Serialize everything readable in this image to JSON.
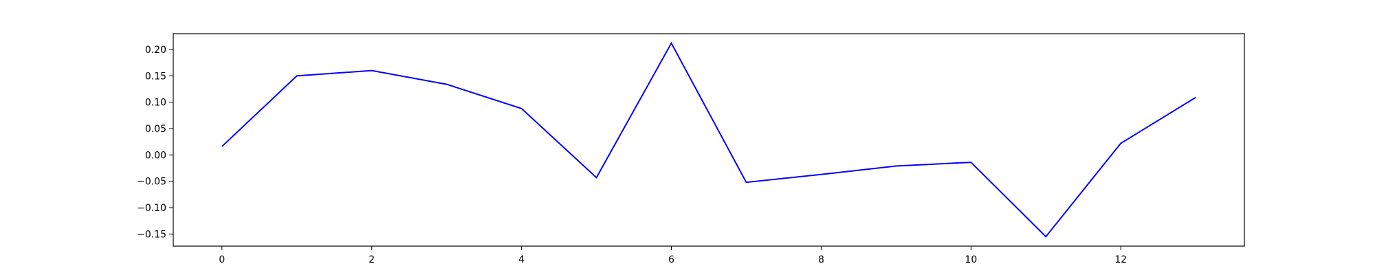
{
  "chart_data": {
    "type": "line",
    "title": "",
    "xlabel": "",
    "ylabel": "",
    "x": [
      0,
      1,
      2,
      3,
      4,
      5,
      6,
      7,
      8,
      9,
      10,
      11,
      12,
      13
    ],
    "series": [
      {
        "values": [
          0.016,
          0.15,
          0.16,
          0.134,
          0.088,
          -0.043,
          0.212,
          -0.052,
          -0.037,
          -0.021,
          -0.014,
          -0.155,
          0.022,
          0.109
        ],
        "color": "#0000ff"
      }
    ],
    "xlim": [
      -0.65,
      13.65
    ],
    "ylim": [
      -0.173,
      0.23
    ],
    "xticks": [
      0,
      2,
      4,
      6,
      8,
      10,
      12
    ],
    "xtick_labels": [
      "0",
      "2",
      "4",
      "6",
      "8",
      "10",
      "12"
    ],
    "yticks": [
      0.2,
      0.15,
      0.1,
      0.05,
      0.0,
      -0.05,
      -0.1,
      -0.15
    ],
    "ytick_labels": [
      "0.20",
      "0.15",
      "0.10",
      "0.05",
      "0.00",
      "−0.05",
      "−0.10",
      "−0.15"
    ],
    "grid": false,
    "legend": false
  }
}
